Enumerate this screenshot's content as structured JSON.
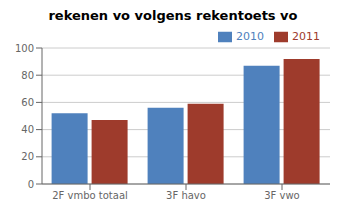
{
  "chart_data": {
    "type": "bar",
    "title": "rekenen vo volgens rekentoets vo",
    "categories": [
      "2F vmbo totaal",
      "3F havo",
      "3F vwo"
    ],
    "series": [
      {
        "name": "2010",
        "color": "#4F81BD",
        "values": [
          52,
          56,
          87
        ]
      },
      {
        "name": "2011",
        "color": "#9E3B2C",
        "values": [
          47,
          59,
          92
        ]
      }
    ],
    "ylim": [
      0,
      100
    ],
    "yticks": [
      0,
      20,
      40,
      60,
      80,
      100
    ],
    "grid": true,
    "legend": "upper right"
  }
}
